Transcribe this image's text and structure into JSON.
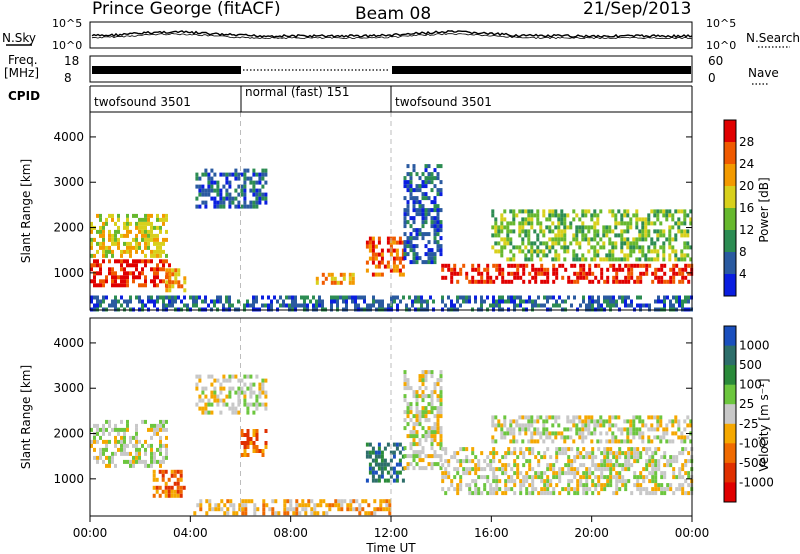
{
  "header": {
    "title": "Prince George (fitACF)",
    "beam": "Beam 08",
    "date": "21/Sep/2013"
  },
  "top_panels": {
    "nsky_label": "N.Sky",
    "nsearch_label": "N.Search",
    "nsky_ticks": [
      "10^5",
      "10^0"
    ],
    "nsearch_ticks": [
      "10^5",
      "10^0"
    ],
    "freq_label": [
      "Freq.",
      "[MHz]"
    ],
    "freq_ticks": [
      "18",
      "8"
    ],
    "nave_label": "Nave",
    "nave_ticks": [
      "60",
      "0"
    ],
    "cpid_label": "CPID",
    "cpid_segments": [
      {
        "label": "twofsound 3501",
        "start_hour": 0,
        "end_hour": 6
      },
      {
        "label": "normal (fast) 151",
        "start_hour": 6,
        "end_hour": 12
      },
      {
        "label": "twofsound 3501",
        "start_hour": 12,
        "end_hour": 24
      }
    ]
  },
  "chart_data": [
    {
      "type": "heatmap",
      "name": "power",
      "ylabel": "Slant Range [km]",
      "yticks": [
        1000,
        2000,
        3000,
        4000
      ],
      "ylim": [
        180,
        4550
      ],
      "xlim": [
        0,
        24
      ],
      "colorbar": {
        "label": "Power [dB]",
        "ticks": [
          "28",
          "24",
          "20",
          "16",
          "12",
          "8",
          "4"
        ],
        "colors": [
          "#e00000",
          "#f05a00",
          "#f39a00",
          "#d8d01c",
          "#66b82e",
          "#2c8c52",
          "#2a5aa0",
          "#0a1ee0"
        ]
      },
      "echo_regions": [
        {
          "t0": 0,
          "t1": 3.2,
          "r0": 700,
          "r1": 1300,
          "level": 0
        },
        {
          "t0": 0,
          "t1": 3.0,
          "r0": 1400,
          "r1": 2300,
          "level": 3
        },
        {
          "t0": 3.0,
          "t1": 3.8,
          "r0": 650,
          "r1": 1100,
          "level": 2
        },
        {
          "t0": 4.2,
          "t1": 7.0,
          "r0": 2500,
          "r1": 3300,
          "level": 6
        },
        {
          "t0": 9.0,
          "t1": 10.5,
          "r0": 750,
          "r1": 1000,
          "level": 2
        },
        {
          "t0": 11.0,
          "t1": 12.5,
          "r0": 1000,
          "r1": 1800,
          "level": 1
        },
        {
          "t0": 12.5,
          "t1": 14.0,
          "r0": 1200,
          "r1": 3400,
          "level": 6
        },
        {
          "t0": 14.0,
          "t1": 24,
          "r0": 800,
          "r1": 1200,
          "level": 0
        },
        {
          "t0": 16.0,
          "t1": 24,
          "r0": 1300,
          "r1": 2400,
          "level": 4
        },
        {
          "t0": 0,
          "t1": 24,
          "r0": 200,
          "r1": 500,
          "level": 6
        }
      ]
    },
    {
      "type": "heatmap",
      "name": "velocity",
      "ylabel": "Slant Range [km]",
      "yticks": [
        1000,
        2000,
        3000,
        4000
      ],
      "ylim": [
        180,
        4550
      ],
      "xlim": [
        0,
        24
      ],
      "xlabel": "Time UT",
      "xticks": [
        "00:00",
        "04:00",
        "08:00",
        "12:00",
        "16:00",
        "20:00",
        "00:00"
      ],
      "colorbar": {
        "label": "Velocity [m s⁻¹]",
        "ticks": [
          "1000",
          "500",
          "100",
          "25",
          "-25",
          "-100",
          "-500",
          "-1000"
        ],
        "colors": [
          "#1a4fbd",
          "#2d6e6a",
          "#2a8a3a",
          "#6cc63e",
          "#c8c8c8",
          "#f5a800",
          "#f06a00",
          "#e03000",
          "#e00000"
        ]
      },
      "echo_regions": [
        {
          "t0": 0,
          "t1": 3.0,
          "r0": 1300,
          "r1": 2300,
          "level": 4
        },
        {
          "t0": 2.5,
          "t1": 3.8,
          "r0": 650,
          "r1": 1200,
          "level": 6
        },
        {
          "t0": 4.2,
          "t1": 7.0,
          "r0": 2500,
          "r1": 3300,
          "level": 4
        },
        {
          "t0": 6.0,
          "t1": 7.0,
          "r0": 1500,
          "r1": 2100,
          "level": 6
        },
        {
          "t0": 11.0,
          "t1": 12.5,
          "r0": 1000,
          "r1": 1800,
          "level": 1
        },
        {
          "t0": 12.5,
          "t1": 14.0,
          "r0": 1200,
          "r1": 3400,
          "level": 4
        },
        {
          "t0": 14.0,
          "t1": 24,
          "r0": 700,
          "r1": 1700,
          "level": 4
        },
        {
          "t0": 16.0,
          "t1": 24,
          "r0": 1800,
          "r1": 2400,
          "level": 4
        },
        {
          "t0": 4.0,
          "t1": 12.0,
          "r0": 200,
          "r1": 550,
          "level": 5
        }
      ]
    }
  ]
}
